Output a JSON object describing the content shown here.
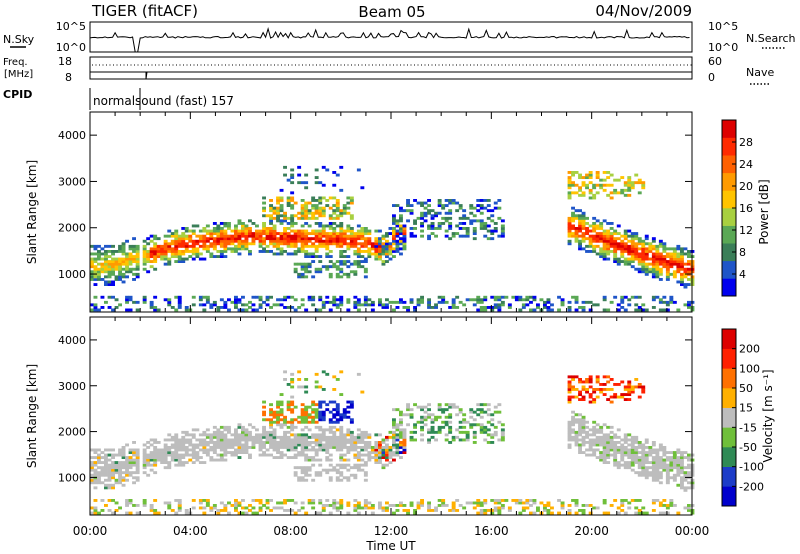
{
  "header": {
    "title": "TIGER (fitACF)",
    "beam": "Beam 05",
    "date": "04/Nov/2009"
  },
  "top_panels": {
    "nsky_label": "N.Sky",
    "nsky_ticks": [
      "10^5",
      "10^0"
    ],
    "nsearch_label": "N.Search",
    "nsearch_ticks": [
      "10^5",
      "10^0"
    ],
    "freq_label_1": "Freq.",
    "freq_label_2": "[MHz]",
    "freq_ticks": [
      "18",
      "8"
    ],
    "nave_label": "Nave",
    "nave_ticks": [
      "60",
      "0"
    ],
    "cpid_label": "CPID",
    "cpid_value": "normalsound (fast) 157"
  },
  "chart_data": [
    {
      "type": "heatmap",
      "name": "power",
      "ylabel": "Slant Range [km]",
      "xlabel": "Time UT",
      "x_ticks": [
        "00:00",
        "04:00",
        "08:00",
        "12:00",
        "16:00",
        "20:00",
        "00:00"
      ],
      "xlim_hours": [
        0,
        24
      ],
      "y_ticks": [
        1000,
        2000,
        3000,
        4000
      ],
      "ylim": [
        180,
        4500
      ],
      "colorbar_label": "Power [dB]",
      "colorbar_ticks": [
        "28",
        "24",
        "20",
        "16",
        "12",
        "8",
        "4"
      ],
      "colors": [
        "#0000ee",
        "#1f55c8",
        "#3a7e58",
        "#5aa855",
        "#a8d040",
        "#ffc400",
        "#ff9a00",
        "#ff6000",
        "#ff2a00",
        "#dd0000"
      ]
    },
    {
      "type": "heatmap",
      "name": "velocity",
      "ylabel": "Slant Range [km]",
      "xlabel": "Time UT",
      "x_ticks": [
        "00:00",
        "04:00",
        "08:00",
        "12:00",
        "16:00",
        "20:00",
        "00:00"
      ],
      "xlim_hours": [
        0,
        24
      ],
      "y_ticks": [
        1000,
        2000,
        3000,
        4000
      ],
      "ylim": [
        180,
        4500
      ],
      "colorbar_label": "Velocity [m s⁻¹]",
      "colorbar_ticks": [
        "200",
        "100",
        "50",
        "15",
        "-15",
        "-50",
        "-100",
        "-200"
      ],
      "colors": [
        "#0000cc",
        "#1c3cc8",
        "#2f8a55",
        "#6fbf3a",
        "#bdbdbd",
        "#ffb000",
        "#ff7000",
        "#ff2000",
        "#dd0000"
      ]
    }
  ],
  "xlabel": "Time UT"
}
